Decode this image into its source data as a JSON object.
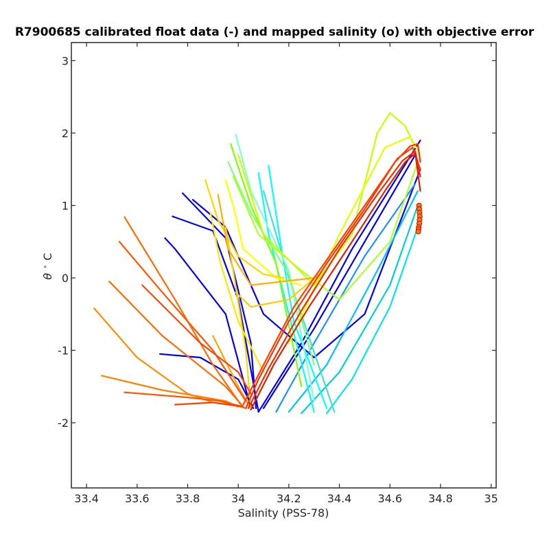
{
  "chart_data": {
    "type": "line",
    "title": "R7900685 calibrated float data (-) and mapped salinity (o) with objective error",
    "xlabel": "Salinity (PSS-78)",
    "ylabel_symbol": "θ",
    "ylabel_unit": "C",
    "xlim": [
      33.34,
      35.02
    ],
    "ylim": [
      -2.9,
      3.25
    ],
    "xticks": [
      33.4,
      33.6,
      33.8,
      34,
      34.2,
      34.4,
      34.6,
      34.8,
      35
    ],
    "xtick_labels": [
      "33.4",
      "33.6",
      "33.8",
      "34",
      "34.2",
      "34.4",
      "34.6",
      "34.8",
      "35"
    ],
    "yticks": [
      -2,
      -1,
      0,
      1,
      2,
      3
    ],
    "ytick_labels": [
      "-2",
      "-1",
      "0",
      "1",
      "2",
      "3"
    ],
    "grid": false,
    "colormap": "jet",
    "series": [
      {
        "color": "#0000ee",
        "x": [
          33.78,
          33.95,
          34.05,
          34.07
        ],
        "y": [
          1.17,
          0.55,
          -0.9,
          -1.8
        ]
      },
      {
        "color": "#0000ee",
        "x": [
          33.69,
          33.85,
          34.0,
          34.06
        ],
        "y": [
          -1.05,
          -1.1,
          -1.4,
          -1.8
        ]
      },
      {
        "color": "#0000ee",
        "x": [
          33.71,
          33.75,
          33.95,
          34.05
        ],
        "y": [
          0.55,
          0.4,
          -0.5,
          -1.8
        ]
      },
      {
        "color": "#0000ee",
        "x": [
          33.74,
          33.9,
          34.0,
          34.08
        ],
        "y": [
          0.85,
          0.65,
          -0.3,
          -1.85
        ]
      },
      {
        "color": "#0000ee",
        "x": [
          33.82,
          33.95,
          34.1,
          34.3,
          34.5,
          34.72
        ],
        "y": [
          1.08,
          0.7,
          -0.5,
          -1.1,
          -0.5,
          1.5
        ]
      },
      {
        "color": "#0000ee",
        "x": [
          34.08,
          34.25,
          34.45,
          34.72
        ],
        "y": [
          -1.85,
          -0.9,
          0.4,
          1.9
        ]
      },
      {
        "color": "#0000ee",
        "x": [
          34.1,
          34.3,
          34.5,
          34.7
        ],
        "y": [
          -1.8,
          -0.7,
          0.5,
          1.7
        ]
      },
      {
        "color": "#1e90ff",
        "x": [
          34.15,
          34.3,
          34.5,
          34.7
        ],
        "y": [
          -1.85,
          -0.9,
          0.3,
          1.3
        ]
      },
      {
        "color": "#00bfff",
        "x": [
          34.2,
          34.35,
          34.55,
          34.71
        ],
        "y": [
          -1.85,
          -1.2,
          0.1,
          1.2
        ]
      },
      {
        "color": "#00ced1",
        "x": [
          34.25,
          34.4,
          34.6,
          34.71
        ],
        "y": [
          -1.87,
          -1.3,
          -0.1,
          1.0
        ]
      },
      {
        "color": "#00e5ee",
        "x": [
          34.35,
          34.45,
          34.6,
          34.71
        ],
        "y": [
          -1.87,
          -1.4,
          -0.4,
          0.7
        ]
      },
      {
        "color": "#00ffff",
        "x": [
          34.12,
          34.18,
          34.22,
          34.35
        ],
        "y": [
          1.55,
          0.2,
          -0.6,
          -1.8
        ]
      },
      {
        "color": "#00ffff",
        "x": [
          34.08,
          34.12,
          34.2,
          34.3
        ],
        "y": [
          1.45,
          0.6,
          -0.5,
          -1.85
        ]
      },
      {
        "color": "#40e0d0",
        "x": [
          34.1,
          34.2,
          34.38
        ],
        "y": [
          1.2,
          0.0,
          -1.85
        ]
      },
      {
        "color": "#7fffd4",
        "x": [
          33.99,
          34.05,
          34.2,
          34.3
        ],
        "y": [
          1.98,
          1.2,
          0.1,
          -1.7
        ]
      },
      {
        "color": "#7fff00",
        "x": [
          33.97,
          34.05,
          34.15,
          34.25
        ],
        "y": [
          1.85,
          1.0,
          0.2,
          -1.5
        ]
      },
      {
        "color": "#7fff7f",
        "x": [
          33.96,
          34.05,
          34.2,
          34.3
        ],
        "y": [
          1.6,
          0.9,
          0.05,
          -1.2
        ]
      },
      {
        "color": "#adff2f",
        "x": [
          33.98,
          34.08,
          34.25,
          34.4,
          34.6,
          34.71
        ],
        "y": [
          1.4,
          0.6,
          0.1,
          -0.3,
          0.5,
          1.6
        ]
      },
      {
        "color": "#c8ff00",
        "x": [
          34.0,
          34.1,
          34.3,
          34.45,
          34.55,
          34.6,
          34.66,
          34.7
        ],
        "y": [
          1.7,
          0.6,
          -0.1,
          0.6,
          2.0,
          2.28,
          2.1,
          1.8
        ]
      },
      {
        "color": "#e0ff00",
        "x": [
          34.2,
          34.4,
          34.58,
          34.68,
          34.72
        ],
        "y": [
          -0.9,
          0.6,
          1.8,
          1.95,
          1.7
        ]
      },
      {
        "color": "#ffff00",
        "x": [
          33.95,
          33.98,
          34.02,
          34.15,
          34.25
        ],
        "y": [
          1.35,
          1.0,
          0.4,
          0.0,
          -0.1
        ]
      },
      {
        "color": "#ffd700",
        "x": [
          33.87,
          33.92,
          34.0,
          34.1,
          34.18
        ],
        "y": [
          1.35,
          0.8,
          0.3,
          0.05,
          0.0
        ]
      },
      {
        "color": "#ffd700",
        "x": [
          33.95,
          33.98,
          34.03,
          34.05
        ],
        "y": [
          0.7,
          0.1,
          -1.0,
          -1.8
        ]
      },
      {
        "color": "#ffe600",
        "x": [
          33.89,
          33.93,
          34.0,
          34.1
        ],
        "y": [
          0.9,
          0.2,
          -0.6,
          -1.3
        ]
      },
      {
        "color": "#ffcc00",
        "x": [
          33.99,
          34.05,
          34.2,
          34.32
        ],
        "y": [
          -0.2,
          -0.4,
          -0.3,
          0.05
        ]
      },
      {
        "color": "#ffb000",
        "x": [
          33.92,
          33.96,
          34.05,
          34.3
        ],
        "y": [
          1.15,
          0.4,
          -0.1,
          0.0
        ]
      },
      {
        "color": "#ffa500",
        "x": [
          33.9,
          34.0,
          34.05
        ],
        "y": [
          -0.8,
          -1.5,
          -1.8
        ]
      },
      {
        "color": "#ff8c00",
        "x": [
          33.43,
          33.6,
          33.8,
          33.9,
          33.98,
          34.03
        ],
        "y": [
          -0.42,
          -1.1,
          -1.6,
          -1.72,
          -1.75,
          -1.8
        ]
      },
      {
        "color": "#ff7f00",
        "x": [
          33.46,
          33.7,
          33.95,
          34.0
        ],
        "y": [
          -1.35,
          -1.55,
          -1.7,
          -1.78
        ]
      },
      {
        "color": "#ff6a00",
        "x": [
          33.49,
          33.7,
          33.95,
          34.02
        ],
        "y": [
          -0.05,
          -0.8,
          -1.5,
          -1.78
        ]
      },
      {
        "color": "#ff6a00",
        "x": [
          33.55,
          33.75,
          33.9,
          34.01
        ],
        "y": [
          0.84,
          -0.3,
          -1.2,
          -1.75
        ]
      },
      {
        "color": "#ff5500",
        "x": [
          33.53,
          33.7,
          33.9,
          34.03
        ],
        "y": [
          0.5,
          -0.2,
          -1.0,
          -1.7
        ]
      },
      {
        "color": "#ff5500",
        "x": [
          33.55,
          33.8,
          33.93,
          34.02
        ],
        "y": [
          -1.58,
          -1.65,
          -1.7,
          -1.78
        ]
      },
      {
        "color": "#ff4500",
        "x": [
          33.62,
          33.85,
          34.0,
          34.05
        ],
        "y": [
          -0.1,
          -0.9,
          -1.3,
          -1.6
        ]
      },
      {
        "color": "#ff4000",
        "x": [
          33.75,
          33.9,
          34.02
        ],
        "y": [
          -1.75,
          -1.72,
          -1.78
        ]
      },
      {
        "color": "#ff3300",
        "x": [
          34.03,
          34.08,
          34.2,
          34.35,
          34.5,
          34.62,
          34.68,
          34.71,
          34.72
        ],
        "y": [
          -1.8,
          -1.4,
          -0.6,
          0.2,
          0.95,
          1.6,
          1.82,
          1.85,
          1.6
        ]
      },
      {
        "color": "#ff4000",
        "x": [
          34.02,
          34.1,
          34.22,
          34.38,
          34.52,
          34.63,
          34.69,
          34.72
        ],
        "y": [
          -1.75,
          -1.2,
          -0.4,
          0.4,
          1.1,
          1.65,
          1.8,
          1.5
        ]
      },
      {
        "color": "#ee2c00",
        "x": [
          34.04,
          34.12,
          34.25,
          34.4,
          34.55,
          34.65,
          34.7,
          34.72
        ],
        "y": [
          -1.8,
          -1.25,
          -0.45,
          0.4,
          1.15,
          1.62,
          1.75,
          1.4
        ]
      },
      {
        "color": "#dd2200",
        "x": [
          34.05,
          34.14,
          34.28,
          34.45,
          34.58,
          34.66,
          34.7,
          34.72
        ],
        "y": [
          -1.82,
          -1.2,
          -0.4,
          0.5,
          1.2,
          1.6,
          1.72,
          1.2
        ]
      }
    ],
    "mapped_points": {
      "color": "#cc0000",
      "x": [
        34.715,
        34.716,
        34.717,
        34.718,
        34.717,
        34.716,
        34.714,
        34.713,
        34.712
      ],
      "y": [
        1.0,
        0.95,
        0.9,
        0.85,
        0.8,
        0.75,
        0.7,
        0.67,
        0.64
      ]
    }
  }
}
